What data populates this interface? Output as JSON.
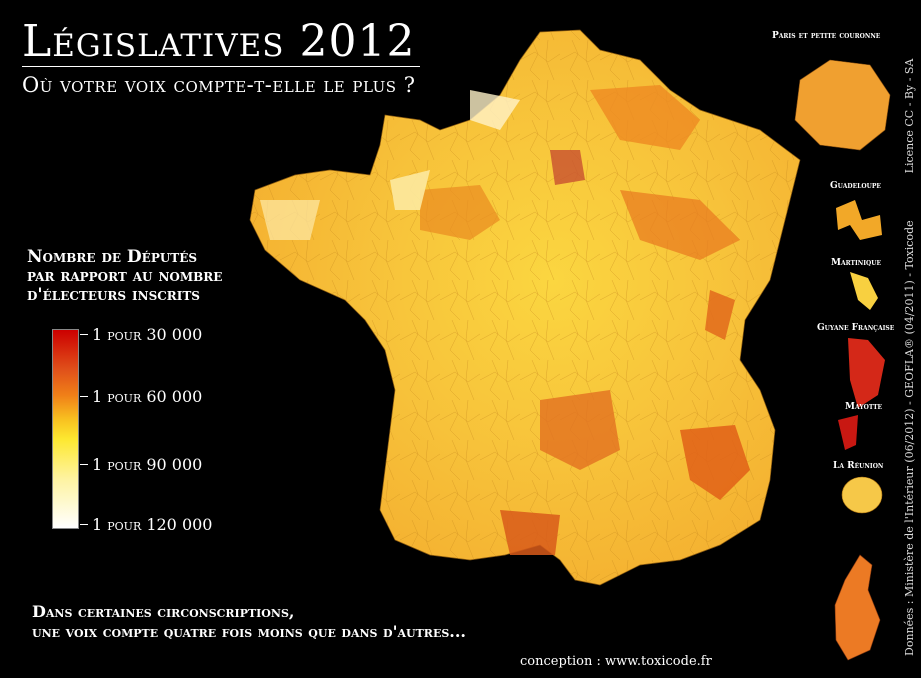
{
  "title": "Législatives 2012",
  "subtitle": "Où votre voix compte-t-elle le plus ?",
  "legend": {
    "title_lines": [
      "Nombre de Députés",
      "par rapport au nombre",
      "d'électeurs inscrits"
    ],
    "levels": [
      "1 pour 30 000",
      "1 pour 60 000",
      "1 pour 90 000",
      "1 pour 120 000"
    ],
    "colors": [
      "#cc0000",
      "#f08018",
      "#fde830",
      "#ffffff"
    ]
  },
  "insets": [
    "Paris et petite couronne",
    "Guadeloupe",
    "Martinique",
    "Guyane Française",
    "Mayotte",
    "La Réunion"
  ],
  "note_lines": [
    "Dans certaines circonscriptions,",
    "une voix compte quatre fois moins que dans d'autres..."
  ],
  "credit": "conception :  www.toxicode.fr",
  "sources": "Données : Ministère de l'Intérieur (06/2012) - GEOFLA® (04/2011) - Toxicode",
  "license": "Licence  CC - By - SA"
}
